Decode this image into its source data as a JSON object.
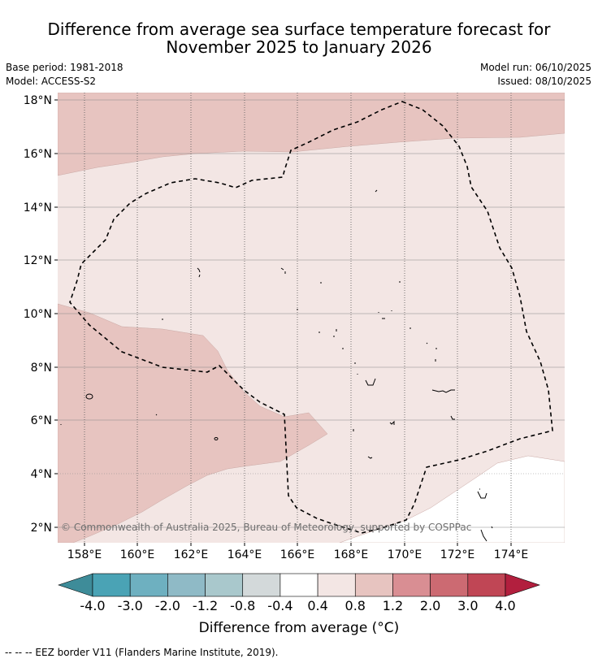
{
  "title_line1": "Difference from average sea surface temperature forecast for",
  "title_line2": "November 2025 to January 2026",
  "base_period": "Base period: 1981-2018",
  "model": "Model: ACCESS-S2",
  "model_run": "Model run: 06/10/2025",
  "issued": "Issued: 08/10/2025",
  "copyright": "© Commonwealth of Australia 2025, Bureau of Meteorology, supported by COSPPac",
  "colorbar": {
    "label": "Difference from average (°C)",
    "ticks": [
      "-4.0",
      "-3.0",
      "-2.0",
      "-1.2",
      "-0.8",
      "-0.4",
      "0.4",
      "0.8",
      "1.2",
      "2.0",
      "3.0",
      "4.0"
    ],
    "colors": [
      "#3e8c99",
      "#4aa3b5",
      "#6eb0c0",
      "#8fbac6",
      "#a9c8cc",
      "#d3d9da",
      "#ffffff",
      "#f3e6e4",
      "#e7c4c0",
      "#d98e93",
      "#cc6a72",
      "#c04655",
      "#b21f3e"
    ]
  },
  "lat_labels": [
    "18°N",
    "16°N",
    "14°N",
    "12°N",
    "10°N",
    "8°N",
    "6°N",
    "4°N",
    "2°N"
  ],
  "lon_labels": [
    "158°E",
    "160°E",
    "162°E",
    "164°E",
    "166°E",
    "168°E",
    "170°E",
    "172°E",
    "174°E"
  ],
  "eez_legend": "--  --  -- EEZ border V11 (Flanders Marine Institute, 2019)."
}
